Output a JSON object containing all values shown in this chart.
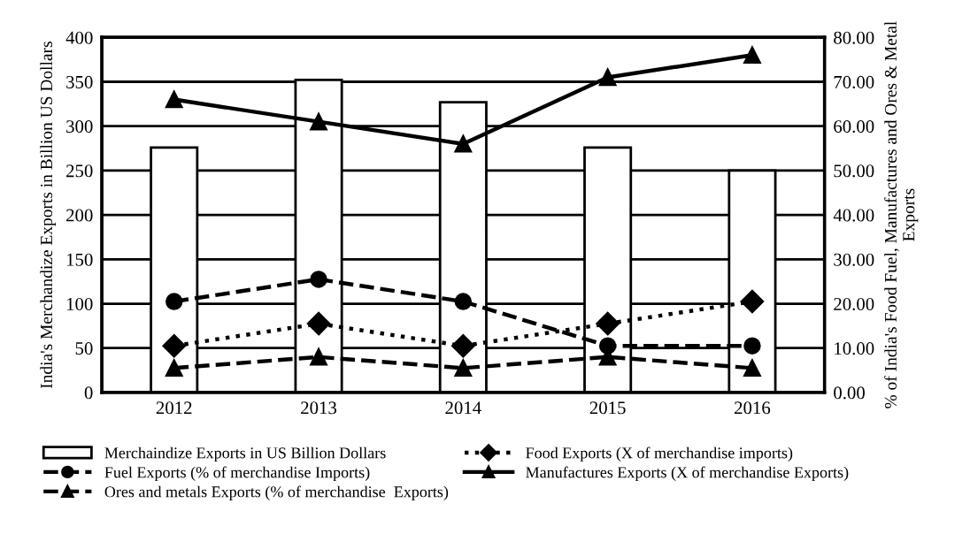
{
  "chart_data": {
    "type": "bar",
    "categories": [
      "2012",
      "2013",
      "2014",
      "2015",
      "2016"
    ],
    "ylabel": "India's Merchandize Exports in Billion US Dollars",
    "y2label": "% of India's Food Fuel, Manufactures and Ores & Metal Exports",
    "ylim": [
      0,
      400
    ],
    "yticks": [
      0,
      50,
      100,
      150,
      200,
      250,
      300,
      350,
      400
    ],
    "y2lim": [
      0,
      80
    ],
    "y2ticks": [
      {
        "value": 0,
        "label": "0.00"
      },
      {
        "value": 10,
        "label": "10.00"
      },
      {
        "value": 20,
        "label": "20.00"
      },
      {
        "value": 30,
        "label": "30.00"
      },
      {
        "value": 40,
        "label": "40.00"
      },
      {
        "value": 50,
        "label": "50.00"
      },
      {
        "value": 60,
        "label": "60.00"
      },
      {
        "value": 70,
        "label": "70.00"
      },
      {
        "value": 80,
        "label": "80.00"
      }
    ],
    "grid": "y",
    "legend": "bottom",
    "series": [
      {
        "name": "Merchaindize Exports in US Billion Dollars",
        "color": "#ffffff",
        "values": [
          276,
          352,
          327,
          276,
          250
        ]
      },
      {
        "name": "Fuel Exports (% of merchandise Imports)",
        "type": "line",
        "axis": "y2",
        "color": "#000000",
        "marker": "circle",
        "line_style": "dashed",
        "values": [
          20.5,
          25.5,
          20.5,
          10.5,
          10.5
        ]
      },
      {
        "name": "Ores and metals Exports (% of merchandise  Exports)",
        "type": "line",
        "axis": "y2",
        "color": "#000000",
        "marker": "triangle",
        "line_style": "dashed",
        "values": [
          5.5,
          8,
          5.5,
          8,
          5.5
        ]
      },
      {
        "name": "Food Exports (X of merchandise imports)",
        "type": "line",
        "axis": "y2",
        "color": "#000000",
        "marker": "diamond",
        "line_style": "dotted",
        "values": [
          10.5,
          15.5,
          10.5,
          15.5,
          20.5
        ]
      },
      {
        "name": "Manufactures Exports (X of merchandise Exports)",
        "type": "line",
        "axis": "y2",
        "color": "#000000",
        "marker": "triangle",
        "line_style": "solid",
        "values": [
          66,
          61,
          56,
          71,
          76
        ]
      }
    ]
  }
}
